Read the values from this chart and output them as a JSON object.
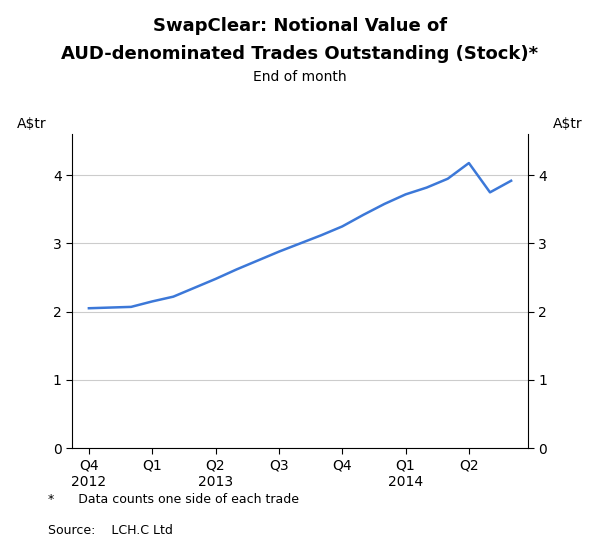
{
  "title_line1": "SwapClear: Notional Value of",
  "title_line2": "AUD-denominated Trades Outstanding (Stock)*",
  "subtitle": "End of month",
  "ylabel_left": "A$tr",
  "ylabel_right": "A$tr",
  "footnote1": "*      Data counts one side of each trade",
  "footnote2": "Source:    LCH.C Ltd",
  "line_color": "#3c78d8",
  "line_width": 1.8,
  "x_monthly": [
    0,
    1,
    2,
    3,
    4,
    5,
    6,
    7,
    8,
    9,
    10,
    11,
    12,
    13,
    14,
    15,
    16,
    17,
    18,
    19,
    20
  ],
  "y_vals": [
    2.05,
    2.06,
    2.07,
    2.15,
    2.22,
    2.35,
    2.48,
    2.62,
    2.75,
    2.88,
    3.0,
    3.12,
    3.25,
    3.42,
    3.58,
    3.72,
    3.82,
    3.95,
    4.18,
    3.75,
    3.92
  ],
  "x_tick_pos": [
    0,
    3,
    6,
    9,
    12,
    15,
    18
  ],
  "x_tick_labels": [
    "Q4\n2012",
    "Q1",
    "Q2\n2013",
    "Q3",
    "Q4",
    "Q1\n2014",
    "Q2"
  ],
  "yticks": [
    0,
    1,
    2,
    3,
    4
  ],
  "ylim": [
    0,
    4.6
  ],
  "xlim": [
    -0.8,
    20.8
  ],
  "background_color": "#ffffff",
  "grid_color": "#cccccc",
  "spine_color": "#000000",
  "title_fontsize": 13,
  "subtitle_fontsize": 10,
  "tick_fontsize": 10,
  "footnote_fontsize": 9
}
